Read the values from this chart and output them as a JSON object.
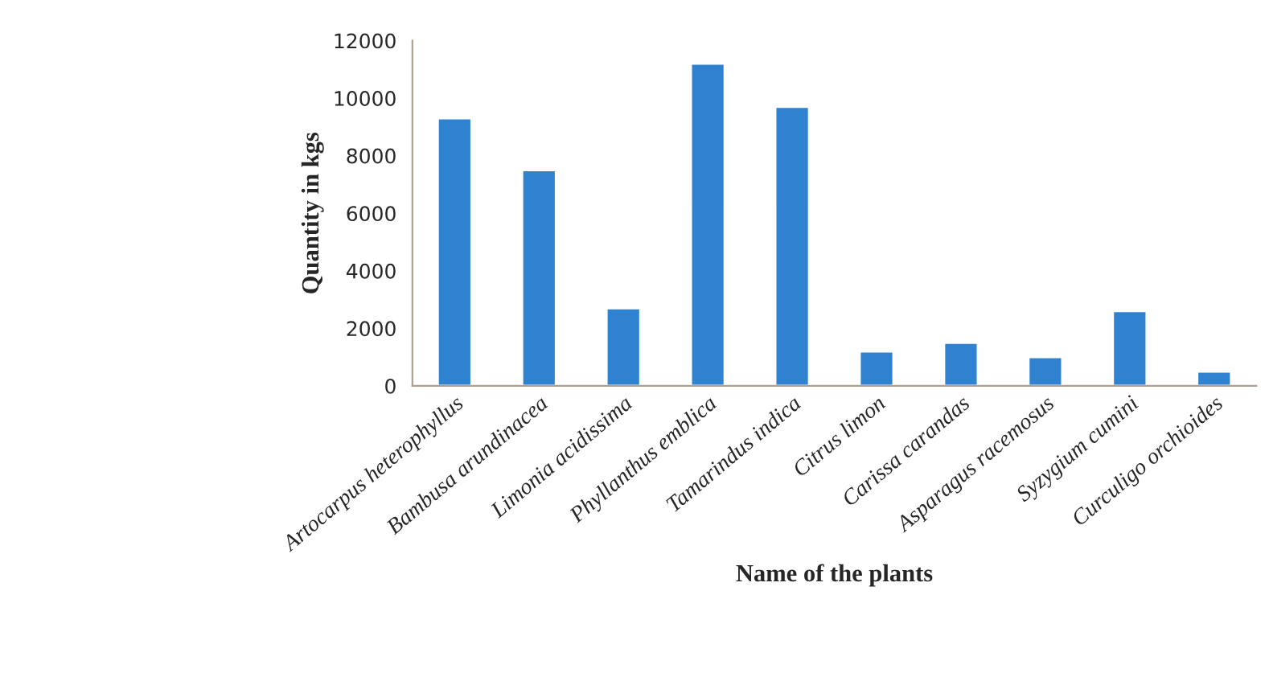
{
  "chart_data": {
    "type": "bar",
    "xlabel": "Name of the plants",
    "ylabel": "Quantity in kgs",
    "categories": [
      "Artocarpus heterophyllus",
      "Bambusa arundinacea",
      "Limonia acidissima",
      "Phyllanthus emblica",
      "Tamarindus indica",
      "Citrus limon",
      "Carissa carandas",
      "Asparagus racemosus",
      "Syzygium cumini",
      "Curculigo orchioides"
    ],
    "values": [
      9300,
      7500,
      2700,
      11200,
      9700,
      1200,
      1500,
      1000,
      2600,
      500
    ],
    "color": "#2f82d0",
    "ylim": [
      0,
      12000
    ],
    "yticks": [
      0,
      2000,
      4000,
      6000,
      8000,
      10000,
      12000
    ],
    "grid": false,
    "legend": false
  }
}
